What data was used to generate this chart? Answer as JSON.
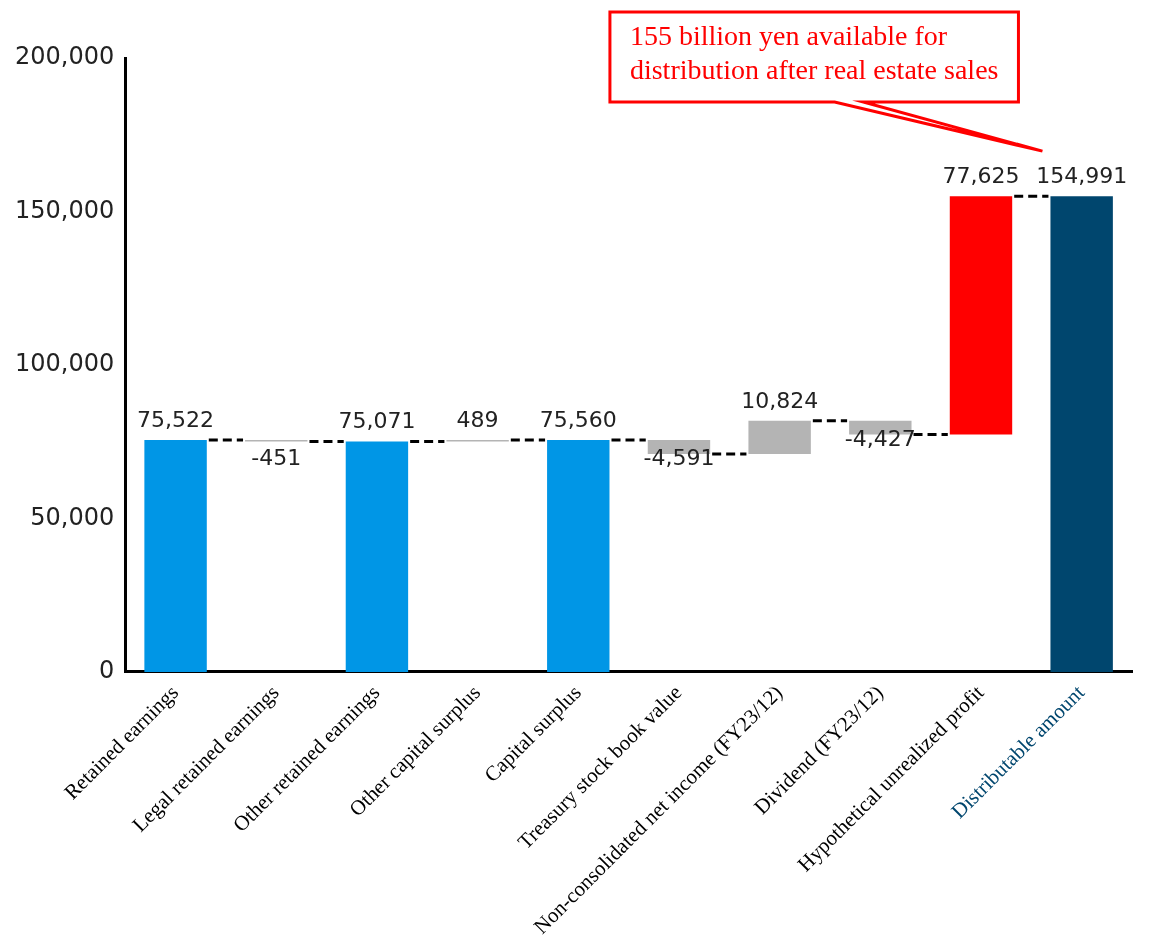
{
  "chart_data": {
    "type": "bar",
    "categories": [
      "Retained earnings",
      "Legal retained earnings",
      "Other retained earnings",
      "Other capital surplus",
      "Capital surplus",
      "Treasury stock book value",
      "Non-consolidated net income (FY23/12)",
      "Dividend (FY23/12)",
      "Hypothetical unrealized profit",
      "Distributable amount"
    ],
    "values": [
      75522,
      -451,
      75071,
      489,
      75560,
      -4591,
      10824,
      -4427,
      77625,
      154991
    ],
    "base": [
      0,
      75522,
      0,
      75071,
      0,
      75560,
      70969,
      81793,
      77366,
      0
    ],
    "colors": [
      "#0096e6",
      "#b4b4b4",
      "#0096e6",
      "#b4b4b4",
      "#0096e6",
      "#b4b4b4",
      "#b4b4b4",
      "#b4b4b4",
      "#ff0000",
      "#00466e"
    ],
    "value_labels": [
      "75,522",
      "-451",
      "75,071",
      "489",
      "75,560",
      "-4,591",
      "10,824",
      "-4,427",
      "77,625",
      "154,991"
    ],
    "ylim": [
      0,
      200000
    ],
    "yticks": [
      0,
      {
        "value": 50000,
        "label": "50,000"
      },
      {
        "value": 100000,
        "label": "100,000"
      },
      {
        "value": 150000,
        "label": "150,000"
      },
      {
        "value": 200000,
        "label": "200,000"
      }
    ],
    "grid": false,
    "legend": false,
    "annotations": [
      "155 billion yen available for distribution after real estate sales"
    ]
  }
}
